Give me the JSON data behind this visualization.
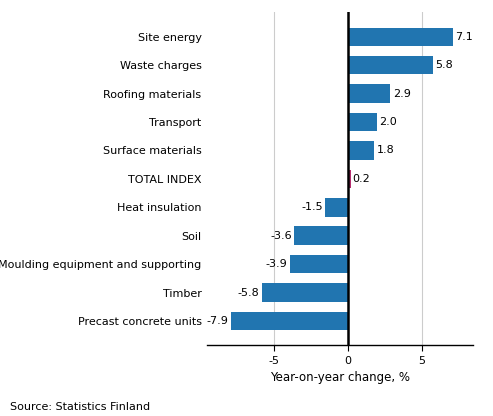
{
  "categories": [
    "Precast concrete units",
    "Timber",
    "Moulding equipment and supporting",
    "Soil",
    "Heat insulation",
    "TOTAL INDEX",
    "Surface materials",
    "Transport",
    "Roofing materials",
    "Waste charges",
    "Site energy"
  ],
  "values": [
    -7.9,
    -5.8,
    -3.9,
    -3.6,
    -1.5,
    0.2,
    1.8,
    2.0,
    2.9,
    5.8,
    7.1
  ],
  "xlabel": "Year-on-year change, %",
  "source": "Source: Statistics Finland",
  "xlim": [
    -9.5,
    8.5
  ],
  "xticks": [
    -5,
    0,
    5
  ],
  "bar_color_default": "#2175b0",
  "bar_color_special": "#b52d6e",
  "background_color": "#ffffff",
  "grid_color": "#cccccc",
  "label_fontsize": 8.0,
  "value_fontsize": 8.0,
  "xlabel_fontsize": 8.5,
  "source_fontsize": 8.0
}
